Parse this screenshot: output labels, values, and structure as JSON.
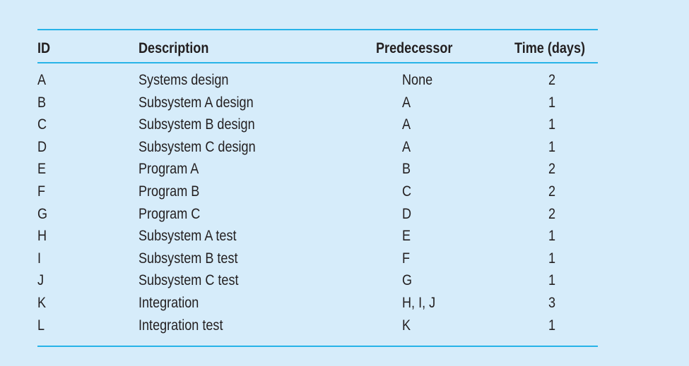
{
  "headers": {
    "id": "ID",
    "description": "Description",
    "predecessor": "Predecessor",
    "time": "Time (days)"
  },
  "rows": [
    {
      "id": "A",
      "description": "Systems design",
      "predecessor": "None",
      "time": "2"
    },
    {
      "id": "B",
      "description": "Subsystem A design",
      "predecessor": "A",
      "time": "1"
    },
    {
      "id": "C",
      "description": "Subsystem B design",
      "predecessor": "A",
      "time": "1"
    },
    {
      "id": "D",
      "description": "Subsystem C design",
      "predecessor": "A",
      "time": "1"
    },
    {
      "id": "E",
      "description": "Program A",
      "predecessor": "B",
      "time": "2"
    },
    {
      "id": "F",
      "description": "Program B",
      "predecessor": "C",
      "time": "2"
    },
    {
      "id": "G",
      "description": "Program C",
      "predecessor": "D",
      "time": "2"
    },
    {
      "id": "H",
      "description": "Subsystem A test",
      "predecessor": "E",
      "time": "1"
    },
    {
      "id": "I",
      "description": "Subsystem B test",
      "predecessor": "F",
      "time": "1"
    },
    {
      "id": "J",
      "description": "Subsystem C test",
      "predecessor": "G",
      "time": "1"
    },
    {
      "id": "K",
      "description": "Integration",
      "predecessor": "H, I, J",
      "time": "3"
    },
    {
      "id": "L",
      "description": "Integration test",
      "predecessor": "K",
      "time": "1"
    }
  ],
  "colors": {
    "background": "#d6ecfa",
    "rule": "#27b3e8",
    "text": "#231f20"
  }
}
